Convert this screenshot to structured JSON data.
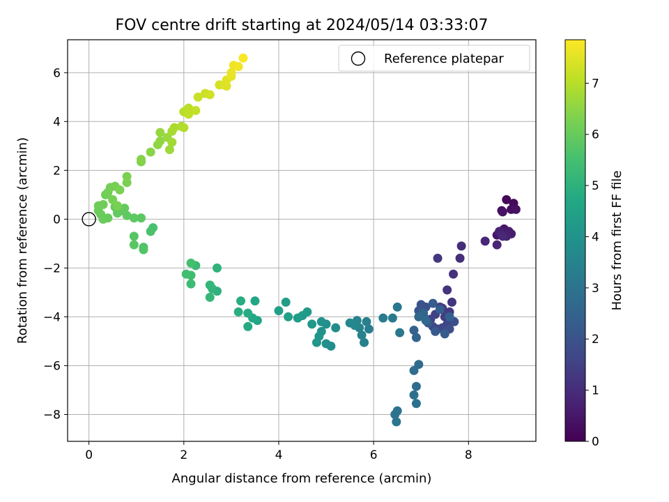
{
  "chart_data": {
    "type": "scatter",
    "title": "FOV centre drift starting at 2024/05/14 03:33:07",
    "xlabel": "Angular distance from reference (arcmin)",
    "ylabel": "Rotation from reference (arcmin)",
    "xlim": [
      -0.45,
      9.42
    ],
    "ylim": [
      -9.1,
      7.35
    ],
    "xticks": [
      0,
      2,
      4,
      6,
      8
    ],
    "yticks": [
      -8,
      -6,
      -4,
      -2,
      0,
      2,
      4,
      6
    ],
    "grid": true,
    "legend": {
      "position": "top-right",
      "entries": [
        "Reference platepar"
      ]
    },
    "reference_point": {
      "x": 0,
      "y": 0
    },
    "colorbar": {
      "label": "Hours from first FF file",
      "range": [
        0,
        7.85
      ],
      "ticks": [
        0,
        1,
        2,
        3,
        4,
        5,
        6,
        7
      ],
      "colormap": "viridis"
    },
    "series": [
      {
        "points": [
          [
            8.8,
            0.8,
            0.15
          ],
          [
            8.95,
            0.65,
            0.2
          ],
          [
            8.7,
            0.35,
            0.25
          ],
          [
            8.9,
            0.4,
            0.3
          ],
          [
            9.0,
            0.4,
            0.35
          ],
          [
            8.72,
            0.3,
            0.4
          ],
          [
            8.6,
            -0.65,
            0.45
          ],
          [
            8.75,
            -0.4,
            0.5
          ],
          [
            8.7,
            -0.55,
            0.55
          ],
          [
            8.85,
            -0.5,
            0.6
          ],
          [
            8.9,
            -0.6,
            0.65
          ],
          [
            8.8,
            -0.7,
            0.7
          ],
          [
            8.65,
            -0.5,
            0.75
          ],
          [
            8.6,
            -1.05,
            0.8
          ],
          [
            8.35,
            -0.9,
            0.85
          ],
          [
            8.72,
            -0.7,
            0.9
          ],
          [
            7.85,
            -1.1,
            1.0
          ],
          [
            7.82,
            -1.6,
            1.05
          ],
          [
            7.68,
            -2.25,
            1.1
          ],
          [
            7.55,
            -2.9,
            1.15
          ],
          [
            7.65,
            -3.4,
            1.2
          ],
          [
            7.35,
            -1.6,
            1.25
          ],
          [
            7.45,
            -3.65,
            1.3
          ],
          [
            7.6,
            -3.8,
            1.35
          ],
          [
            7.5,
            -4.0,
            1.4
          ],
          [
            7.4,
            -3.6,
            1.45
          ],
          [
            7.3,
            -3.9,
            1.5
          ],
          [
            7.2,
            -4.1,
            1.55
          ],
          [
            7.55,
            -4.3,
            1.6
          ],
          [
            7.45,
            -4.45,
            1.65
          ],
          [
            7.35,
            -4.5,
            1.7
          ],
          [
            7.25,
            -4.4,
            1.75
          ],
          [
            7.5,
            -4.6,
            1.8
          ],
          [
            7.6,
            -4.5,
            1.85
          ],
          [
            7.7,
            -4.2,
            1.9
          ],
          [
            7.1,
            -3.6,
            1.95
          ],
          [
            7.0,
            -3.5,
            2.0
          ],
          [
            6.95,
            -3.75,
            2.05
          ],
          [
            7.05,
            -3.95,
            2.1
          ],
          [
            7.15,
            -4.25,
            2.15
          ],
          [
            7.3,
            -4.6,
            2.2
          ],
          [
            7.5,
            -4.7,
            2.25
          ],
          [
            7.25,
            -3.45,
            2.3
          ],
          [
            7.4,
            -3.7,
            2.35
          ],
          [
            7.6,
            -4.0,
            2.4
          ],
          [
            6.85,
            -4.55,
            2.45
          ],
          [
            6.9,
            -4.85,
            2.5
          ],
          [
            7.05,
            -3.85,
            2.55
          ],
          [
            6.95,
            -4.0,
            2.6
          ],
          [
            7.1,
            -4.15,
            2.65
          ],
          [
            6.95,
            -5.95,
            2.7
          ],
          [
            6.85,
            -6.2,
            2.75
          ],
          [
            6.9,
            -6.85,
            2.8
          ],
          [
            6.85,
            -7.2,
            2.85
          ],
          [
            6.9,
            -7.55,
            2.9
          ],
          [
            6.5,
            -7.85,
            2.95
          ],
          [
            6.45,
            -8.0,
            3.0
          ],
          [
            6.48,
            -8.3,
            3.05
          ],
          [
            6.5,
            -3.6,
            3.1
          ],
          [
            6.55,
            -4.65,
            3.15
          ],
          [
            6.4,
            -4.05,
            3.2
          ],
          [
            6.2,
            -4.05,
            3.25
          ],
          [
            5.9,
            -4.5,
            3.3
          ],
          [
            5.85,
            -4.2,
            3.35
          ],
          [
            5.8,
            -5.05,
            3.4
          ],
          [
            5.75,
            -4.75,
            3.45
          ],
          [
            5.7,
            -4.45,
            3.5
          ],
          [
            5.65,
            -4.15,
            3.55
          ],
          [
            5.6,
            -4.35,
            3.6
          ],
          [
            5.5,
            -4.25,
            3.65
          ],
          [
            5.2,
            -4.45,
            3.75
          ],
          [
            5.1,
            -5.2,
            3.8
          ],
          [
            5.0,
            -5.1,
            3.85
          ],
          [
            5.0,
            -4.3,
            3.9
          ],
          [
            4.9,
            -4.2,
            3.95
          ],
          [
            4.9,
            -4.6,
            4.0
          ],
          [
            4.85,
            -4.8,
            4.05
          ],
          [
            4.8,
            -5.05,
            4.1
          ],
          [
            4.7,
            -4.3,
            4.15
          ],
          [
            4.6,
            -3.8,
            4.2
          ],
          [
            4.5,
            -3.95,
            4.25
          ],
          [
            4.4,
            -4.05,
            4.3
          ],
          [
            4.15,
            -3.4,
            4.35
          ],
          [
            4.2,
            -4.0,
            4.4
          ],
          [
            4.0,
            -3.75,
            4.45
          ],
          [
            3.55,
            -4.15,
            4.6
          ],
          [
            3.5,
            -3.35,
            4.65
          ],
          [
            3.45,
            -4.05,
            4.7
          ],
          [
            3.35,
            -4.4,
            4.75
          ],
          [
            3.35,
            -3.85,
            4.8
          ],
          [
            3.2,
            -3.35,
            4.85
          ],
          [
            3.15,
            -3.8,
            4.9
          ],
          [
            2.7,
            -2.95,
            5.0
          ],
          [
            2.7,
            -2.0,
            5.05
          ],
          [
            2.6,
            -2.85,
            5.1
          ],
          [
            2.55,
            -2.7,
            5.15
          ],
          [
            2.55,
            -3.2,
            5.2
          ],
          [
            2.25,
            -1.9,
            5.3
          ],
          [
            2.15,
            -2.65,
            5.35
          ],
          [
            2.15,
            -2.3,
            5.4
          ],
          [
            2.05,
            -2.25,
            5.45
          ],
          [
            2.15,
            -1.8,
            5.5
          ],
          [
            1.35,
            -0.35,
            5.55
          ],
          [
            1.3,
            -0.5,
            5.6
          ],
          [
            1.15,
            -1.15,
            5.65
          ],
          [
            1.15,
            -1.25,
            5.7
          ],
          [
            0.95,
            -0.7,
            5.75
          ],
          [
            0.95,
            -1.05,
            5.8
          ],
          [
            1.1,
            0.05,
            5.85
          ],
          [
            0.95,
            0.05,
            5.88
          ],
          [
            0.8,
            0.15,
            5.9
          ],
          [
            0.7,
            0.35,
            5.92
          ],
          [
            0.6,
            0.25,
            5.94
          ],
          [
            0.75,
            0.45,
            5.96
          ],
          [
            0.55,
            0.5,
            5.98
          ],
          [
            0.4,
            0.05,
            6.0
          ],
          [
            0.3,
            0.0,
            6.02
          ],
          [
            0.25,
            0.2,
            6.04
          ],
          [
            0.2,
            0.35,
            6.06
          ],
          [
            0.2,
            0.55,
            6.1
          ],
          [
            0.3,
            0.6,
            6.12
          ],
          [
            0.35,
            1.0,
            6.14
          ],
          [
            0.4,
            1.1,
            6.16
          ],
          [
            0.45,
            1.3,
            6.18
          ],
          [
            0.55,
            1.35,
            6.2
          ],
          [
            0.5,
            0.8,
            6.22
          ],
          [
            0.6,
            0.55,
            6.24
          ],
          [
            0.65,
            1.2,
            6.26
          ],
          [
            0.8,
            1.5,
            6.28
          ],
          [
            0.8,
            1.75,
            6.3
          ],
          [
            1.1,
            2.35,
            6.35
          ],
          [
            1.1,
            2.45,
            6.4
          ],
          [
            1.3,
            2.75,
            6.45
          ],
          [
            1.45,
            3.05,
            6.5
          ],
          [
            1.5,
            3.2,
            6.55
          ],
          [
            1.5,
            3.55,
            6.6
          ],
          [
            1.65,
            3.35,
            6.65
          ],
          [
            1.7,
            2.85,
            6.7
          ],
          [
            1.75,
            3.15,
            6.75
          ],
          [
            1.75,
            3.6,
            6.8
          ],
          [
            1.8,
            3.75,
            6.85
          ],
          [
            1.95,
            3.8,
            6.9
          ],
          [
            2.0,
            3.75,
            6.95
          ],
          [
            2.0,
            4.4,
            7.0
          ],
          [
            2.1,
            4.55,
            7.05
          ],
          [
            2.1,
            4.3,
            7.1
          ],
          [
            2.25,
            4.45,
            7.15
          ],
          [
            2.3,
            5.0,
            7.2
          ],
          [
            2.45,
            5.15,
            7.25
          ],
          [
            2.55,
            5.1,
            7.3
          ],
          [
            2.75,
            5.5,
            7.35
          ],
          [
            2.85,
            5.5,
            7.4
          ],
          [
            2.9,
            5.45,
            7.45
          ],
          [
            2.9,
            5.7,
            7.5
          ],
          [
            3.0,
            5.85,
            7.55
          ],
          [
            3.0,
            6.0,
            7.6
          ],
          [
            3.05,
            6.3,
            7.65
          ],
          [
            3.15,
            6.25,
            7.7
          ],
          [
            3.25,
            6.6,
            7.8
          ]
        ]
      }
    ]
  }
}
